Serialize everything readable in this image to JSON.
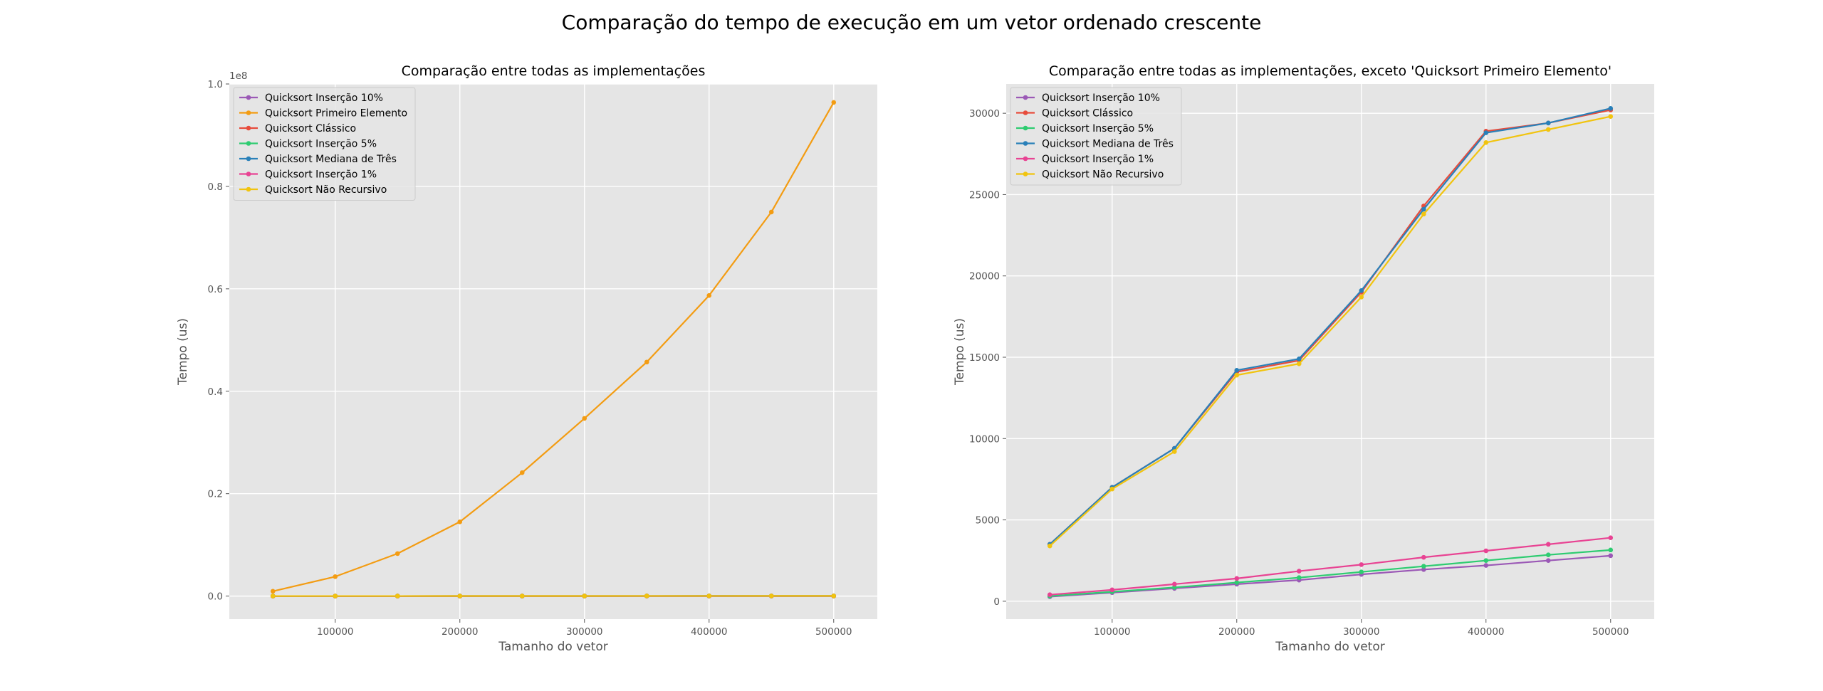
{
  "figure": {
    "title": "Comparação do tempo de execução em um vetor ordenado crescente"
  },
  "chart_data": [
    {
      "type": "line",
      "title": "Comparação entre todas as implementações",
      "xlabel": "Tamanho do vetor",
      "ylabel": "Tempo (us)",
      "x": [
        50000,
        100000,
        150000,
        200000,
        250000,
        300000,
        350000,
        400000,
        450000,
        500000
      ],
      "xlim": [
        15000,
        535000
      ],
      "ylim": [
        -4500000.0,
        100000000.0
      ],
      "xticks": [
        100000,
        200000,
        300000,
        400000,
        500000
      ],
      "yticks": [
        0,
        20000000,
        40000000,
        60000000,
        80000000,
        100000000
      ],
      "ytick_labels": [
        "0.0",
        "0.2",
        "0.4",
        "0.6",
        "0.8",
        "1.0"
      ],
      "y_offset_text": "1e8",
      "grid": true,
      "legend_position": "upper-left",
      "series": [
        {
          "name": "Quicksort Inserção 10%",
          "color": "#9b59b6",
          "values": [
            280,
            530,
            790,
            1050,
            1300,
            1650,
            1950,
            2200,
            2500,
            2800
          ]
        },
        {
          "name": "Quicksort Primeiro Elemento",
          "color": "#f39c12",
          "values": [
            950000,
            3800000,
            8300000,
            14500000,
            24100000,
            34700000,
            45700000,
            58700000,
            75000000,
            96400000
          ]
        },
        {
          "name": "Quicksort Clássico",
          "color": "#e74c3c",
          "values": [
            3500,
            7000,
            9400,
            14100,
            14800,
            19000,
            24300,
            28900,
            29400,
            30200
          ]
        },
        {
          "name": "Quicksort Inserção 5%",
          "color": "#2ecc71",
          "values": [
            320,
            580,
            850,
            1150,
            1450,
            1800,
            2150,
            2500,
            2850,
            3150
          ]
        },
        {
          "name": "Quicksort Mediana de Três",
          "color": "#2980b9",
          "values": [
            3500,
            7000,
            9400,
            14200,
            14900,
            19100,
            24100,
            28800,
            29400,
            30300
          ]
        },
        {
          "name": "Quicksort Inserção 1%",
          "color": "#e84393",
          "values": [
            400,
            700,
            1050,
            1400,
            1850,
            2250,
            2700,
            3100,
            3500,
            3900
          ]
        },
        {
          "name": "Quicksort Não Recursivo",
          "color": "#f1c40f",
          "values": [
            3400,
            6900,
            9200,
            13900,
            14600,
            18700,
            23800,
            28200,
            29000,
            29800
          ]
        }
      ]
    },
    {
      "type": "line",
      "title": "Comparação entre todas as implementações, exceto 'Quicksort Primeiro Elemento'",
      "xlabel": "Tamanho do vetor",
      "ylabel": "Tempo (us)",
      "x": [
        50000,
        100000,
        150000,
        200000,
        250000,
        300000,
        350000,
        400000,
        450000,
        500000
      ],
      "xlim": [
        15000,
        535000
      ],
      "ylim": [
        -1100,
        31800
      ],
      "xticks": [
        100000,
        200000,
        300000,
        400000,
        500000
      ],
      "yticks": [
        0,
        5000,
        10000,
        15000,
        20000,
        25000,
        30000
      ],
      "grid": true,
      "legend_position": "upper-left",
      "series": [
        {
          "name": "Quicksort Inserção 10%",
          "color": "#9b59b6",
          "values": [
            280,
            530,
            790,
            1050,
            1300,
            1650,
            1950,
            2200,
            2500,
            2800
          ]
        },
        {
          "name": "Quicksort Clássico",
          "color": "#e74c3c",
          "values": [
            3500,
            7000,
            9400,
            14100,
            14800,
            19000,
            24300,
            28900,
            29400,
            30200
          ]
        },
        {
          "name": "Quicksort Inserção 5%",
          "color": "#2ecc71",
          "values": [
            320,
            580,
            850,
            1150,
            1450,
            1800,
            2150,
            2500,
            2850,
            3150
          ]
        },
        {
          "name": "Quicksort Mediana de Três",
          "color": "#2980b9",
          "values": [
            3500,
            7000,
            9400,
            14200,
            14900,
            19100,
            24100,
            28800,
            29400,
            30300
          ]
        },
        {
          "name": "Quicksort Inserção 1%",
          "color": "#e84393",
          "values": [
            400,
            700,
            1050,
            1400,
            1850,
            2250,
            2700,
            3100,
            3500,
            3900
          ]
        },
        {
          "name": "Quicksort Não Recursivo",
          "color": "#f1c40f",
          "values": [
            3400,
            6900,
            9200,
            13900,
            14600,
            18700,
            23800,
            28200,
            29000,
            29800
          ]
        }
      ]
    }
  ]
}
